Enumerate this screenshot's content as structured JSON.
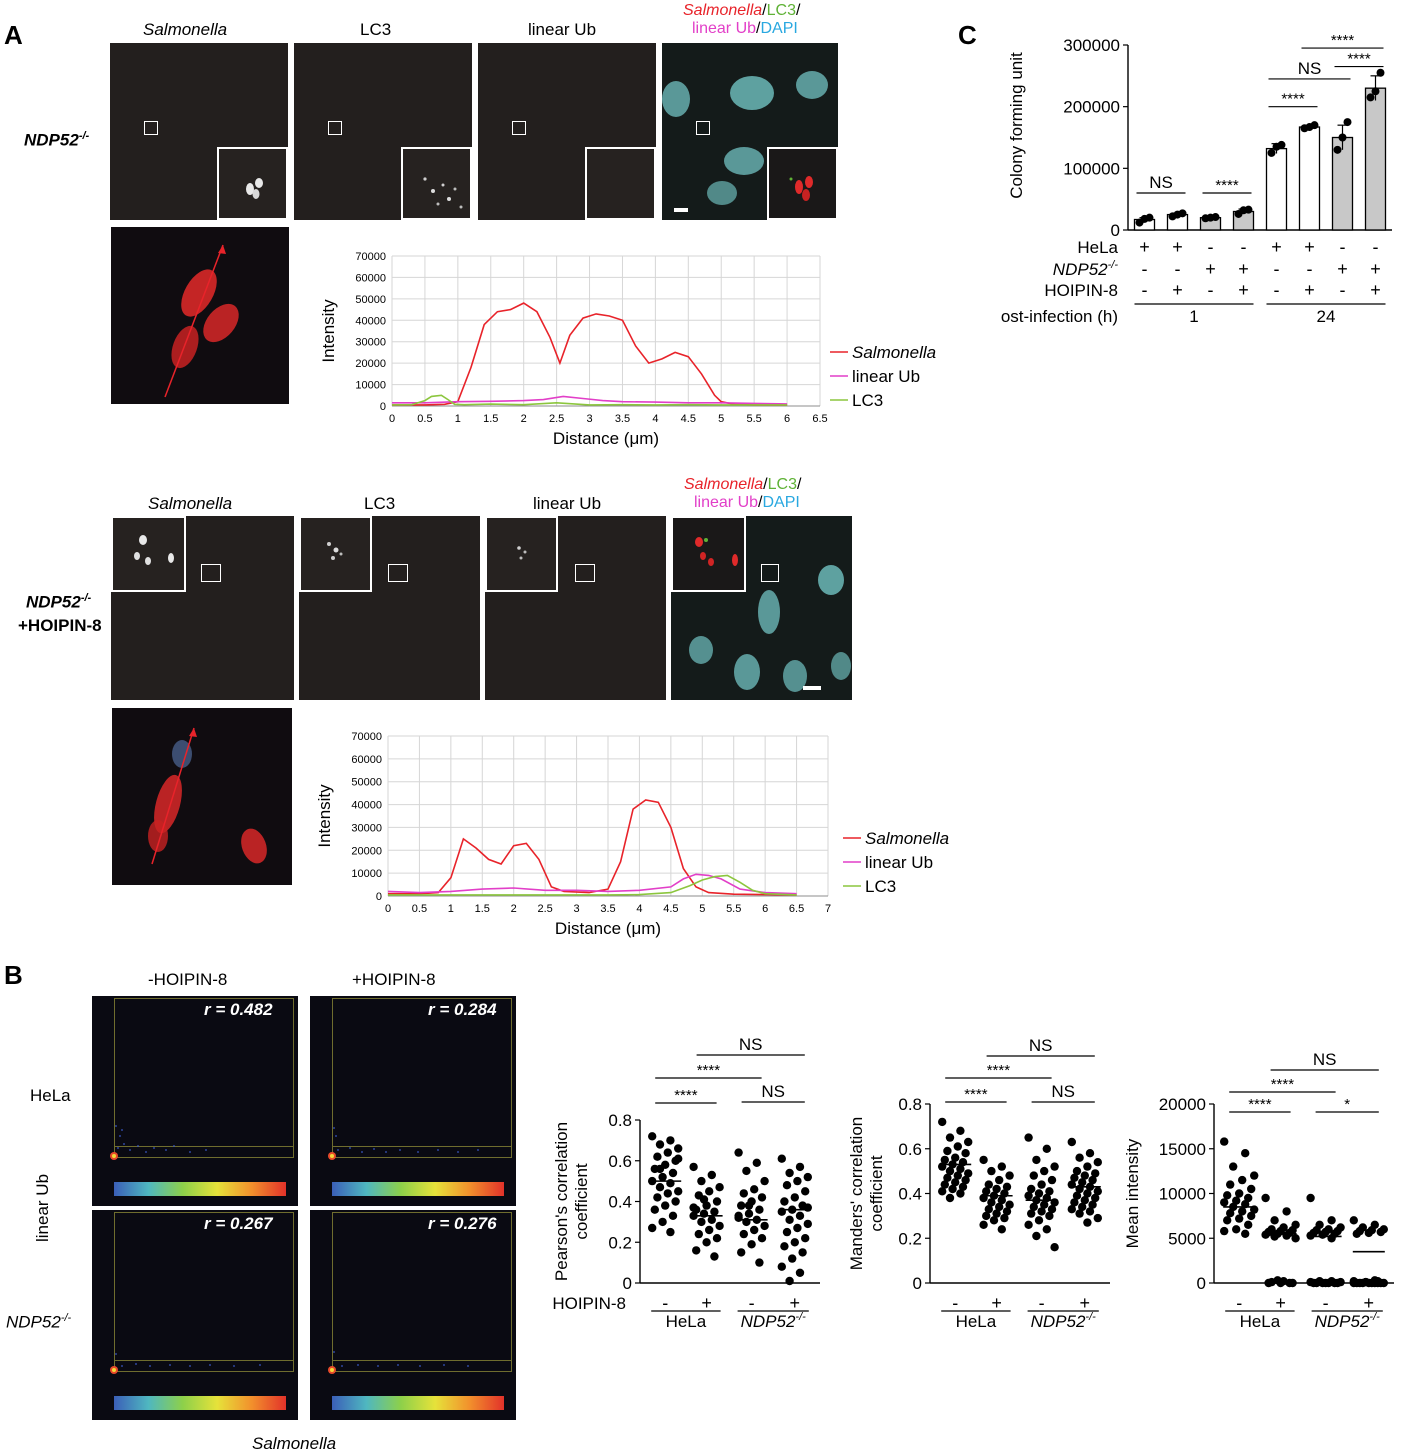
{
  "panel_labels": {
    "a": "A",
    "b": "B",
    "c": "C"
  },
  "panelA": {
    "headers": {
      "salmonella": "Salmonella",
      "lc3": "LC3",
      "linear_ub": "linear Ub",
      "merge_salmonella": "Salmonella",
      "merge_sep1": "/",
      "merge_lc3": "LC3",
      "merge_sep2": "/",
      "merge_linear_ub": "linear Ub",
      "merge_sep3": "/",
      "merge_dapi": "DAPI"
    },
    "row1_label": "NDP52",
    "row1_label_sup": "-/-",
    "row2_label": "NDP52",
    "row2_label_sup": "-/-",
    "row2_label_line2": "+HOIPIN-8",
    "colors": {
      "salmonella": "#e8232a",
      "lc3": "#5fb236",
      "linear_ub": "#e23fc8",
      "dapi": "#29a8e0"
    }
  },
  "chart_data": [
    {
      "id": "profile_1",
      "type": "line",
      "xlabel": "Distance (μm)",
      "ylabel": "Intensity",
      "xlim": [
        0,
        6.5
      ],
      "ylim": [
        0,
        70000
      ],
      "xticks": [
        "0",
        "0.5",
        "1",
        "1.5",
        "2",
        "2.5",
        "3",
        "3.5",
        "4",
        "4.5",
        "5",
        "5.5",
        "6",
        "6.5"
      ],
      "yticks": [
        "0",
        "10000",
        "20000",
        "30000",
        "40000",
        "50000",
        "60000",
        "70000"
      ],
      "grid": true,
      "legend_position": "right",
      "series": [
        {
          "name": "Salmonella",
          "color": "#e8232a",
          "x": [
            0,
            0.5,
            0.8,
            1.0,
            1.2,
            1.4,
            1.6,
            1.8,
            2.0,
            2.2,
            2.4,
            2.55,
            2.7,
            2.9,
            3.1,
            3.3,
            3.5,
            3.7,
            3.9,
            4.1,
            4.3,
            4.5,
            4.7,
            4.9,
            5.0,
            5.2,
            5.5,
            6.0
          ],
          "y": [
            500,
            500,
            800,
            2000,
            18000,
            38000,
            44000,
            45000,
            48000,
            44000,
            32000,
            20000,
            33000,
            41000,
            43000,
            42000,
            40000,
            28000,
            20000,
            22000,
            25000,
            23000,
            15000,
            5000,
            2000,
            800,
            500,
            500
          ]
        },
        {
          "name": "linear Ub",
          "color": "#e23fc8",
          "x": [
            0,
            0.5,
            1.0,
            1.5,
            2.0,
            2.3,
            2.6,
            2.9,
            3.2,
            3.5,
            4.0,
            4.5,
            5.0,
            5.5,
            6.0
          ],
          "y": [
            1500,
            1500,
            2000,
            2200,
            2500,
            3000,
            4500,
            3500,
            2500,
            2000,
            1800,
            1500,
            1500,
            1200,
            1000
          ]
        },
        {
          "name": "LC3",
          "color": "#8cc63e",
          "x": [
            0,
            0.3,
            0.5,
            0.6,
            0.75,
            0.85,
            0.95,
            1.1,
            1.5,
            2.0,
            2.5,
            3.0,
            3.5,
            4.0,
            4.5,
            5.0,
            5.5,
            6.0
          ],
          "y": [
            500,
            600,
            2500,
            4500,
            5000,
            3000,
            800,
            600,
            900,
            600,
            1500,
            500,
            600,
            500,
            600,
            500,
            500,
            500
          ]
        }
      ]
    },
    {
      "id": "profile_2",
      "type": "line",
      "xlabel": "Distance (μm)",
      "ylabel": "Intensity",
      "xlim": [
        0,
        7
      ],
      "ylim": [
        0,
        70000
      ],
      "xticks": [
        "0",
        "0.5",
        "1",
        "1.5",
        "2",
        "2.5",
        "3",
        "3.5",
        "4",
        "4.5",
        "5",
        "5.5",
        "6",
        "6.5",
        "7"
      ],
      "yticks": [
        "0",
        "10000",
        "20000",
        "30000",
        "40000",
        "50000",
        "60000",
        "70000"
      ],
      "grid": true,
      "legend_position": "right",
      "series": [
        {
          "name": "Salmonella",
          "color": "#e8232a",
          "x": [
            0,
            0.5,
            0.8,
            1.0,
            1.2,
            1.4,
            1.6,
            1.8,
            2.0,
            2.2,
            2.4,
            2.6,
            2.8,
            3.2,
            3.5,
            3.7,
            3.9,
            4.1,
            4.3,
            4.5,
            4.7,
            4.9,
            5.1,
            5.5,
            6.0,
            6.5
          ],
          "y": [
            1000,
            1000,
            1500,
            8000,
            25000,
            21000,
            16000,
            14000,
            22000,
            23000,
            16000,
            4000,
            2000,
            1500,
            3000,
            15000,
            38000,
            42000,
            41000,
            30000,
            12000,
            4000,
            1500,
            800,
            600,
            500
          ]
        },
        {
          "name": "linear Ub",
          "color": "#e23fc8",
          "x": [
            0,
            0.5,
            1.0,
            1.5,
            2.0,
            2.5,
            3.0,
            3.5,
            4.0,
            4.5,
            4.7,
            4.9,
            5.1,
            5.3,
            5.6,
            6.0,
            6.5
          ],
          "y": [
            2000,
            1500,
            2000,
            3000,
            3500,
            2500,
            2500,
            2000,
            2500,
            4000,
            7500,
            9500,
            9000,
            7500,
            3000,
            1500,
            1000
          ]
        },
        {
          "name": "LC3",
          "color": "#8cc63e",
          "x": [
            0,
            0.5,
            1.0,
            1.5,
            2.0,
            2.5,
            3.0,
            3.5,
            4.0,
            4.5,
            4.8,
            5.0,
            5.2,
            5.4,
            5.6,
            5.8,
            6.0,
            6.5
          ],
          "y": [
            500,
            500,
            500,
            500,
            500,
            500,
            500,
            500,
            600,
            1500,
            4500,
            7000,
            8500,
            9000,
            6000,
            2500,
            1000,
            500
          ]
        }
      ]
    },
    {
      "id": "pearson",
      "type": "scatter",
      "ylabel": "Pearson's correlation coefficient",
      "ylim": [
        0,
        0.8
      ],
      "yticks": [
        "0",
        "0.2",
        "0.4",
        "0.6",
        "0.8"
      ],
      "categories": [
        "-",
        "+",
        "-",
        "+"
      ],
      "means": [
        0.5,
        0.33,
        0.31,
        0.36
      ],
      "points": [
        [
          0.72,
          0.7,
          0.68,
          0.66,
          0.64,
          0.62,
          0.6,
          0.58,
          0.56,
          0.54,
          0.52,
          0.5,
          0.49,
          0.47,
          0.45,
          0.44,
          0.42,
          0.4,
          0.38,
          0.36,
          0.33,
          0.3,
          0.27,
          0.25,
          0.56,
          0.61
        ],
        [
          0.57,
          0.53,
          0.5,
          0.47,
          0.45,
          0.43,
          0.4,
          0.38,
          0.36,
          0.35,
          0.34,
          0.33,
          0.31,
          0.3,
          0.28,
          0.26,
          0.24,
          0.22,
          0.2,
          0.16,
          0.13,
          0.41,
          0.37
        ],
        [
          0.64,
          0.59,
          0.55,
          0.5,
          0.46,
          0.44,
          0.42,
          0.4,
          0.38,
          0.36,
          0.34,
          0.32,
          0.31,
          0.3,
          0.28,
          0.26,
          0.24,
          0.22,
          0.19,
          0.15,
          0.1,
          0.38,
          0.33
        ],
        [
          0.61,
          0.57,
          0.54,
          0.52,
          0.5,
          0.48,
          0.45,
          0.42,
          0.4,
          0.38,
          0.36,
          0.35,
          0.33,
          0.31,
          0.29,
          0.27,
          0.25,
          0.22,
          0.2,
          0.18,
          0.15,
          0.12,
          0.08,
          0.05,
          0.01,
          0.37
        ]
      ]
    },
    {
      "id": "manders",
      "type": "scatter",
      "ylabel": "Manders' correlation coefficient",
      "ylim": [
        0,
        0.8
      ],
      "yticks": [
        "0",
        "0.2",
        "0.4",
        "0.6",
        "0.8"
      ],
      "categories": [
        "-",
        "+",
        "-",
        "+"
      ],
      "means": [
        0.53,
        0.39,
        0.37,
        0.43
      ],
      "points": [
        [
          0.72,
          0.68,
          0.65,
          0.63,
          0.61,
          0.59,
          0.58,
          0.56,
          0.55,
          0.54,
          0.53,
          0.52,
          0.51,
          0.5,
          0.49,
          0.48,
          0.47,
          0.46,
          0.45,
          0.44,
          0.43,
          0.42,
          0.41,
          0.4,
          0.38
        ],
        [
          0.55,
          0.52,
          0.5,
          0.48,
          0.46,
          0.44,
          0.43,
          0.42,
          0.41,
          0.4,
          0.39,
          0.38,
          0.37,
          0.36,
          0.35,
          0.34,
          0.33,
          0.32,
          0.31,
          0.3,
          0.29,
          0.28,
          0.26,
          0.24
        ],
        [
          0.65,
          0.6,
          0.55,
          0.52,
          0.5,
          0.48,
          0.46,
          0.44,
          0.42,
          0.41,
          0.4,
          0.39,
          0.38,
          0.37,
          0.36,
          0.35,
          0.34,
          0.33,
          0.32,
          0.31,
          0.3,
          0.28,
          0.26,
          0.24,
          0.21,
          0.16
        ],
        [
          0.63,
          0.58,
          0.56,
          0.54,
          0.52,
          0.5,
          0.49,
          0.48,
          0.47,
          0.46,
          0.45,
          0.44,
          0.43,
          0.42,
          0.41,
          0.4,
          0.39,
          0.38,
          0.37,
          0.36,
          0.35,
          0.34,
          0.33,
          0.32,
          0.31,
          0.29,
          0.27
        ]
      ]
    },
    {
      "id": "mean_intensity",
      "type": "scatter",
      "ylabel": "Mean intensity",
      "ylim": [
        0,
        20000
      ],
      "yticks": [
        "0",
        "5000",
        "10000",
        "15000",
        "20000"
      ],
      "categories": [
        "-",
        "+",
        "-",
        "+"
      ],
      "means": [
        8500,
        5500,
        5200,
        3500
      ],
      "points": [
        [
          15800,
          14500,
          13000,
          12000,
          11500,
          11000,
          10500,
          10000,
          9800,
          9500,
          9200,
          9000,
          8800,
          8500,
          8200,
          8000,
          7800,
          7500,
          7200,
          7000,
          6500,
          6000,
          5800,
          5500
        ],
        [
          9500,
          8000,
          7000,
          6500,
          6200,
          6000,
          5900,
          5800,
          5700,
          5600,
          5500,
          5400,
          5300,
          5200,
          5000,
          200,
          100,
          0,
          0,
          0,
          0,
          300
        ],
        [
          9500,
          7000,
          6500,
          6200,
          6000,
          5900,
          5800,
          5700,
          5600,
          5500,
          5400,
          5300,
          5000,
          200,
          100,
          0,
          0,
          0,
          0,
          0,
          0,
          0,
          100,
          200
        ],
        [
          7000,
          6500,
          6200,
          6000,
          5900,
          5800,
          5700,
          5600,
          5500,
          200,
          100,
          0,
          0,
          0,
          0,
          0,
          0,
          0,
          0,
          0,
          0,
          100,
          200,
          300
        ]
      ]
    },
    {
      "id": "cfu",
      "type": "bar",
      "ylabel": "Colony forming unit",
      "ylim": [
        0,
        300000
      ],
      "yticks": [
        "0",
        "100000",
        "200000",
        "300000"
      ],
      "values": [
        17000,
        25000,
        20000,
        30000,
        132000,
        167000,
        150000,
        230000
      ],
      "errors": [
        3000,
        2500,
        1500,
        4000,
        8000,
        2000,
        20000,
        20000
      ],
      "fills": [
        "white",
        "white",
        "gray",
        "gray",
        "white",
        "white",
        "gray",
        "gray"
      ],
      "points": [
        [
          12000,
          18000,
          20000
        ],
        [
          22000,
          25000,
          27000
        ],
        [
          19000,
          20000,
          21000
        ],
        [
          26000,
          32000,
          33000
        ],
        [
          125000,
          135000,
          138000
        ],
        [
          165000,
          167000,
          170000
        ],
        [
          130000,
          150000,
          175000
        ],
        [
          215000,
          225000,
          255000
        ]
      ],
      "row_hela": [
        "+",
        "+",
        "-",
        "-",
        "+",
        "+",
        "-",
        "-"
      ],
      "row_ndp52": [
        "-",
        "-",
        "+",
        "+",
        "-",
        "-",
        "+",
        "+"
      ],
      "row_hoipin": [
        "-",
        "+",
        "-",
        "+",
        "-",
        "+",
        "-",
        "+"
      ]
    }
  ],
  "profile_legend": {
    "salmonella": "Salmonella",
    "linear_ub": "linear Ub",
    "lc3": "LC3"
  },
  "panelB": {
    "col_minus": "-HOIPIN-8",
    "col_plus": "+HOIPIN-8",
    "row_hela": "HeLa",
    "row_ndp52": "NDP52",
    "row_ndp52_sup": "-/-",
    "y_axis_label": "linear Ub",
    "x_axis_label": "Salmonella",
    "r_values": [
      "r = 0.482",
      "r = 0.284",
      "r = 0.267",
      "r = 0.276"
    ],
    "hoipin_label": "HOIPIN-8",
    "group_hela": "HeLa",
    "group_ndp52": "NDP52",
    "group_ndp52_sup": "-/-",
    "sig_pearson": [
      "NS",
      "****",
      "****",
      "NS"
    ],
    "sig_manders": [
      "NS",
      "****",
      "****",
      "NS"
    ],
    "sig_intensity": [
      "NS",
      "****",
      "****",
      "*"
    ]
  },
  "panelC": {
    "row_labels": {
      "hela": "HeLa",
      "ndp52": "NDP52",
      "ndp52_sup": "-/-",
      "hoipin": "HOIPIN-8",
      "post": "Post-infection (h)"
    },
    "time_1": "1",
    "time_24": "24",
    "sig": [
      "NS",
      "****",
      "****",
      "NS",
      "****",
      "****"
    ]
  }
}
